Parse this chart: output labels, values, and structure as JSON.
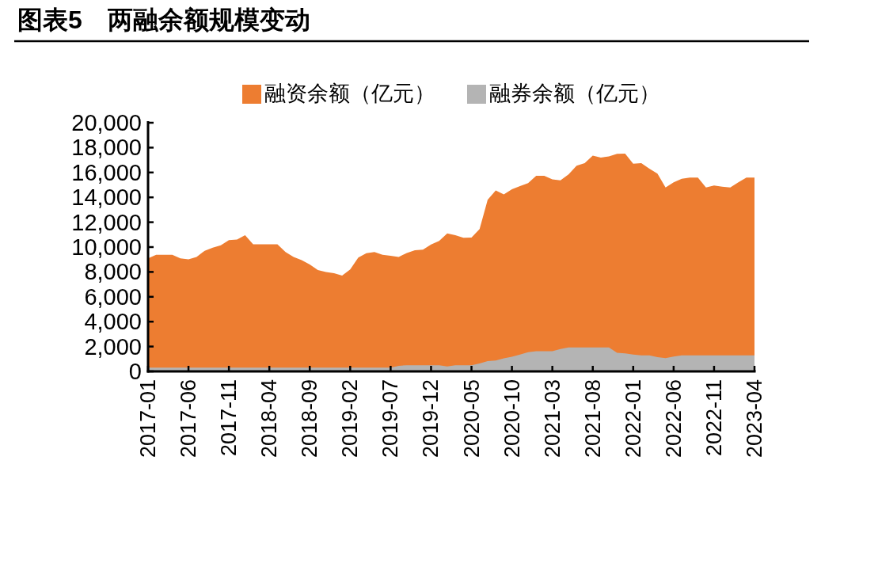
{
  "chart_data": {
    "type": "area",
    "title": "图表5　两融余额规模变动",
    "x": [
      "2017-01",
      "2017-02",
      "2017-03",
      "2017-04",
      "2017-05",
      "2017-06",
      "2017-07",
      "2017-08",
      "2017-09",
      "2017-10",
      "2017-11",
      "2017-12",
      "2018-01",
      "2018-02",
      "2018-03",
      "2018-04",
      "2018-05",
      "2018-06",
      "2018-07",
      "2018-08",
      "2018-09",
      "2018-10",
      "2018-11",
      "2018-12",
      "2019-01",
      "2019-02",
      "2019-03",
      "2019-04",
      "2019-05",
      "2019-06",
      "2019-07",
      "2019-08",
      "2019-09",
      "2019-10",
      "2019-11",
      "2019-12",
      "2020-01",
      "2020-02",
      "2020-03",
      "2020-04",
      "2020-05",
      "2020-06",
      "2020-07",
      "2020-08",
      "2020-09",
      "2020-10",
      "2020-11",
      "2020-12",
      "2021-01",
      "2021-02",
      "2021-03",
      "2021-04",
      "2021-05",
      "2021-06",
      "2021-07",
      "2021-08",
      "2021-09",
      "2021-10",
      "2021-11",
      "2021-12",
      "2022-01",
      "2022-02",
      "2022-03",
      "2022-04",
      "2022-05",
      "2022-06",
      "2022-07",
      "2022-08",
      "2022-09",
      "2022-10",
      "2022-11",
      "2022-12",
      "2023-01",
      "2023-02",
      "2023-03",
      "2023-04"
    ],
    "series": [
      {
        "name": "融资余额（亿元）",
        "color": "#ed7d31",
        "values": [
          9100,
          9380,
          9380,
          9380,
          9100,
          9020,
          9210,
          9700,
          9950,
          10150,
          10550,
          10600,
          10950,
          10230,
          10230,
          10230,
          10230,
          9600,
          9200,
          8950,
          8600,
          8150,
          8000,
          7900,
          7700,
          8200,
          9150,
          9500,
          9600,
          9380,
          9300,
          9200,
          9530,
          9750,
          9800,
          10200,
          10500,
          11100,
          10950,
          10750,
          10770,
          11450,
          13800,
          14550,
          14230,
          14650,
          14900,
          15150,
          15730,
          15730,
          15450,
          15370,
          15850,
          16540,
          16750,
          17350,
          17200,
          17300,
          17500,
          17520,
          16700,
          16750,
          16300,
          15900,
          14800,
          15200,
          15500,
          15590,
          15590,
          14800,
          14950,
          14850,
          14800,
          15200,
          15590,
          15590
        ]
      },
      {
        "name": "融券余额（亿元）",
        "color": "#b4b4b4",
        "values": [
          300,
          300,
          300,
          300,
          300,
          300,
          300,
          300,
          300,
          300,
          300,
          300,
          300,
          300,
          300,
          300,
          300,
          300,
          300,
          300,
          300,
          300,
          300,
          300,
          300,
          300,
          300,
          300,
          300,
          300,
          300,
          450,
          500,
          500,
          500,
          500,
          500,
          400,
          500,
          500,
          500,
          630,
          830,
          880,
          1050,
          1180,
          1350,
          1550,
          1620,
          1620,
          1620,
          1800,
          1920,
          1920,
          1920,
          1920,
          1920,
          1920,
          1500,
          1450,
          1350,
          1290,
          1290,
          1150,
          1070,
          1200,
          1290,
          1290,
          1290,
          1290,
          1290,
          1290,
          1290,
          1290,
          1290,
          1290
        ]
      }
    ],
    "xlim": [
      "2017-01",
      "2023-04"
    ],
    "xticks": [
      "2017-01",
      "2017-06",
      "2017-11",
      "2018-04",
      "2018-09",
      "2019-02",
      "2019-07",
      "2019-12",
      "2020-05",
      "2020-10",
      "2021-03",
      "2021-08",
      "2022-01",
      "2022-06",
      "2022-11",
      "2023-04"
    ],
    "ylim": [
      0,
      20000
    ],
    "yticks": [
      {
        "value": 0,
        "label": "0"
      },
      {
        "value": 2000,
        "label": "2,000"
      },
      {
        "value": 4000,
        "label": "4,000"
      },
      {
        "value": 6000,
        "label": "6,000"
      },
      {
        "value": 8000,
        "label": "8,000"
      },
      {
        "value": 10000,
        "label": "10,000"
      },
      {
        "value": 12000,
        "label": "12,000"
      },
      {
        "value": 14000,
        "label": "14,000"
      },
      {
        "value": 16000,
        "label": "16,000"
      },
      {
        "value": 18000,
        "label": "18,000"
      },
      {
        "value": 20000,
        "label": "20,000"
      }
    ],
    "grid": false,
    "legend": "top"
  }
}
